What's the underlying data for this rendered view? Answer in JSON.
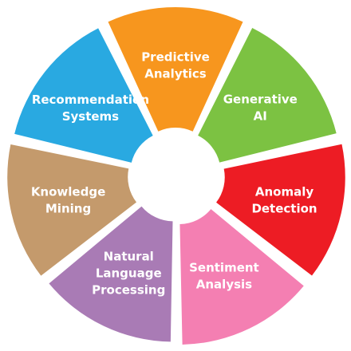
{
  "segments": [
    {
      "lines": [
        "Predictive",
        "Analytics"
      ],
      "color": "#F7961E"
    },
    {
      "lines": [
        "Generative",
        "AI"
      ],
      "color": "#7CC242"
    },
    {
      "lines": [
        "Anomaly",
        "Detection"
      ],
      "color": "#ED1C24"
    },
    {
      "lines": [
        "Sentiment",
        "Analysis"
      ],
      "color": "#F47FB2"
    },
    {
      "lines": [
        "Natural",
        "Language",
        "Processing"
      ],
      "color": "#A97BB5"
    },
    {
      "lines": [
        "Knowledge",
        "Mining"
      ],
      "color": "#C49A6C"
    },
    {
      "lines": [
        "Recommendation",
        "Systems"
      ],
      "color": "#29A9E1"
    }
  ]
}
